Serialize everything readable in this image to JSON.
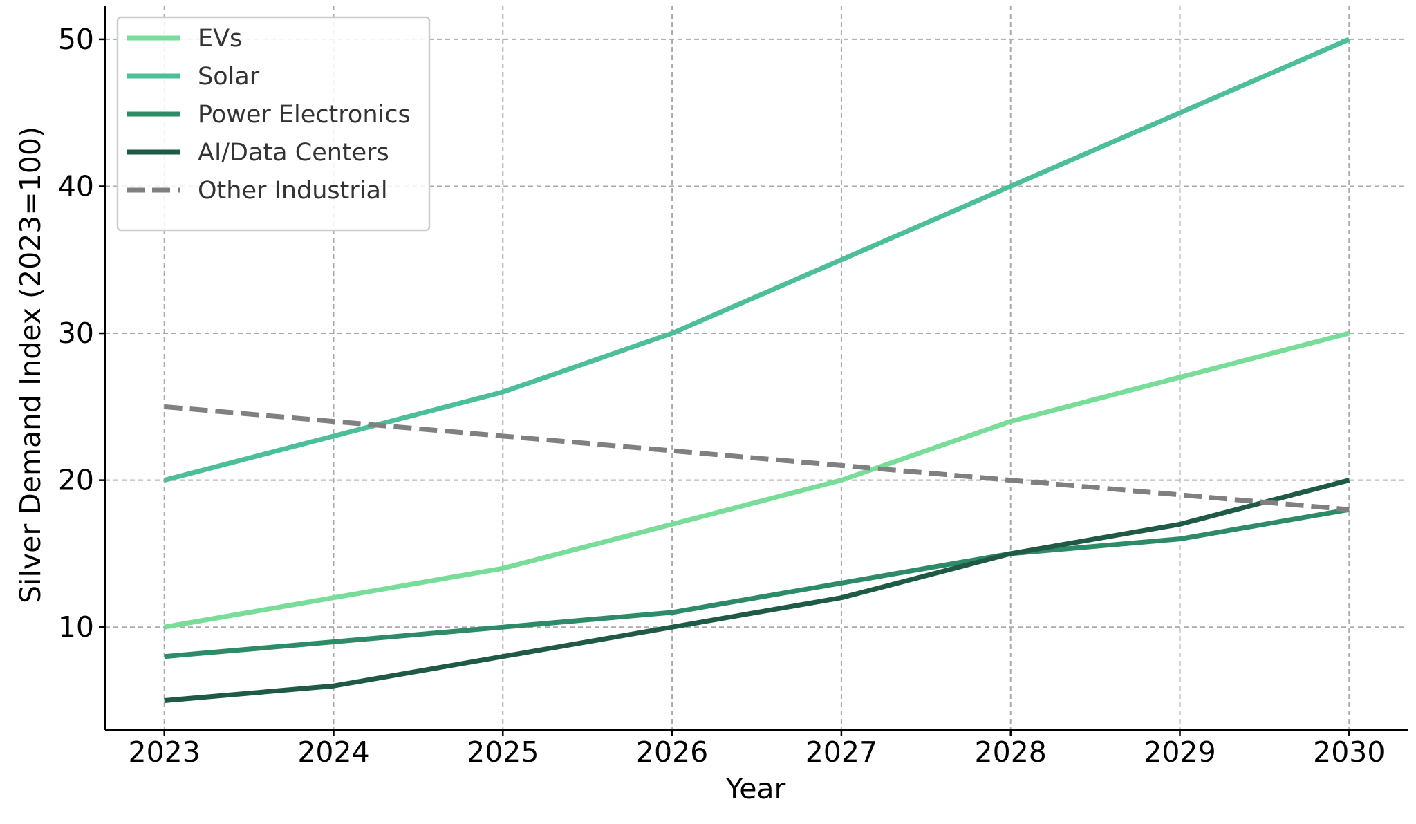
{
  "chart_data": {
    "type": "line",
    "title": "",
    "xlabel": "Year",
    "ylabel": "Silver Demand Index (2023=100)",
    "x": [
      "2023",
      "2024",
      "2025",
      "2026",
      "2027",
      "2028",
      "2029",
      "2030"
    ],
    "xlim": [
      2022.65,
      2030.35
    ],
    "ylim": [
      3,
      52.3
    ],
    "yticks": [
      "10",
      "20",
      "30",
      "40",
      "50"
    ],
    "grid": true,
    "legend_position": "top-left",
    "series": [
      {
        "name": "EVs",
        "values": [
          10,
          12,
          14,
          17,
          20,
          24,
          27,
          30
        ],
        "color": "#77dd99",
        "style": "solid"
      },
      {
        "name": "Solar",
        "values": [
          20,
          23,
          26,
          30,
          35,
          40,
          45,
          50
        ],
        "color": "#4cbf9a",
        "style": "solid"
      },
      {
        "name": "Power Electronics",
        "values": [
          8,
          9,
          10,
          11,
          13,
          15,
          16,
          18
        ],
        "color": "#2e8b68",
        "style": "solid"
      },
      {
        "name": "AI/Data Centers",
        "values": [
          5,
          6,
          8,
          10,
          12,
          15,
          17,
          20
        ],
        "color": "#1f5a45",
        "style": "solid"
      },
      {
        "name": "Other Industrial",
        "values": [
          25,
          24,
          23,
          22,
          21,
          20,
          19,
          18
        ],
        "color": "#808080",
        "style": "dashed"
      }
    ]
  }
}
